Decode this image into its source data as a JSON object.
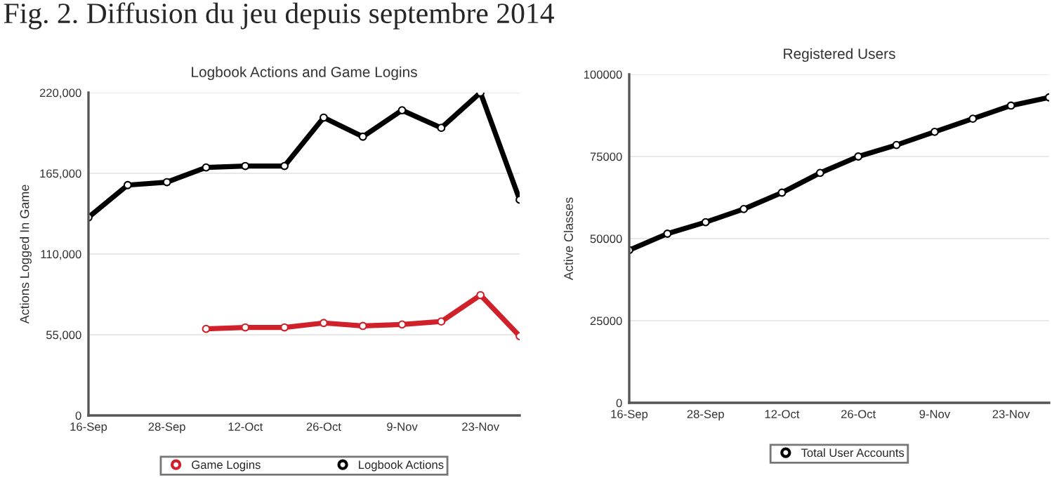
{
  "chart_data": [
    {
      "type": "line",
      "title": "Logbook Actions and Game Logins",
      "ylabel": "Actions Logged In Game",
      "annotations": [
        "Fig. 2. Diffusion du jeu depuis septembre 2014"
      ],
      "categories": [
        "16-Sep",
        null,
        "28-Sep",
        null,
        "12-Oct",
        null,
        "26-Oct",
        null,
        "9-Nov",
        null,
        "23-Nov",
        null
      ],
      "series": [
        {
          "name": "Game Logins",
          "color": "#d0202a",
          "values": [
            null,
            null,
            null,
            59000,
            60000,
            60000,
            63000,
            61000,
            62000,
            64000,
            82000,
            54000
          ]
        },
        {
          "name": "Logbook Actions",
          "color": "#000000",
          "values": [
            135000,
            157000,
            159000,
            169000,
            170000,
            170000,
            203000,
            190000,
            208000,
            196000,
            220000,
            147000
          ]
        }
      ],
      "ylim": [
        0,
        220000
      ],
      "yticks": [
        0,
        {
          "value": 55000,
          "label": "55,000"
        },
        {
          "value": 110000,
          "label": "110,000"
        },
        {
          "value": 165000,
          "label": "165,000"
        },
        {
          "value": 220000,
          "label": "220,000"
        }
      ],
      "grid": "y",
      "legend": "bottom",
      "marker": "circle",
      "line_style": "solid"
    },
    {
      "type": "line",
      "title": "Registered Users",
      "ylabel": "Active Classes",
      "categories": [
        "16-Sep",
        null,
        "28-Sep",
        null,
        "12-Oct",
        null,
        "26-Oct",
        null,
        "9-Nov",
        null,
        "23-Nov",
        null
      ],
      "series": [
        {
          "name": "Total User Accounts",
          "color": "#000000",
          "values": [
            46500,
            51500,
            55000,
            59000,
            64000,
            70000,
            75000,
            78500,
            82500,
            86500,
            90500,
            93000
          ]
        }
      ],
      "ylim": [
        0,
        100000
      ],
      "yticks": [
        0,
        25000,
        50000,
        75000,
        100000
      ],
      "grid": "y",
      "legend": "bottom",
      "marker": "circle",
      "line_style": "solid"
    }
  ]
}
